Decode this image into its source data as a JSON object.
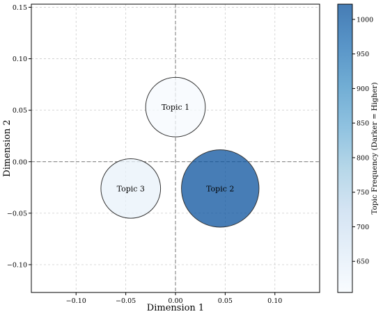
{
  "chart_data": {
    "type": "scatter",
    "subtype": "bubble",
    "title": "",
    "xlabel": "Dimension 1",
    "ylabel": "Dimension 2",
    "xlim": [
      -0.145,
      0.145
    ],
    "ylim": [
      -0.127,
      0.153
    ],
    "xticks": [
      -0.1,
      -0.05,
      0.0,
      0.05,
      0.1
    ],
    "xtick_labels": [
      "−0.10",
      "−0.05",
      "0.00",
      "0.05",
      "0.10"
    ],
    "yticks": [
      -0.1,
      -0.05,
      0.0,
      0.05,
      0.1,
      0.15
    ],
    "ytick_labels": [
      "−0.10",
      "−0.05",
      "0.00",
      "0.05",
      "0.10",
      "0.15"
    ],
    "grid": true,
    "reference_lines": {
      "x": 0.0,
      "y": 0.0,
      "style": "dashed"
    },
    "points": [
      {
        "label": "Topic 1",
        "x": 0.0,
        "y": 0.053,
        "frequency": 610,
        "radius": 0.03
      },
      {
        "label": "Topic 2",
        "x": 0.045,
        "y": -0.026,
        "frequency": 1020,
        "radius": 0.039
      },
      {
        "label": "Topic 3",
        "x": -0.045,
        "y": -0.026,
        "frequency": 640,
        "radius": 0.03
      }
    ],
    "colorbar": {
      "label": "Topic Frequency (Darker = Higher)",
      "range": [
        605,
        1022
      ],
      "ticks": [
        650,
        700,
        750,
        800,
        850,
        900,
        950,
        1000
      ],
      "colormap": "Blues",
      "colors": [
        "#f7fbff",
        "#deebf7",
        "#c6dbef",
        "#9ecae1",
        "#6baed6",
        "#4292c6",
        "#2171b5",
        "#08519c"
      ],
      "alpha": 0.75
    }
  }
}
